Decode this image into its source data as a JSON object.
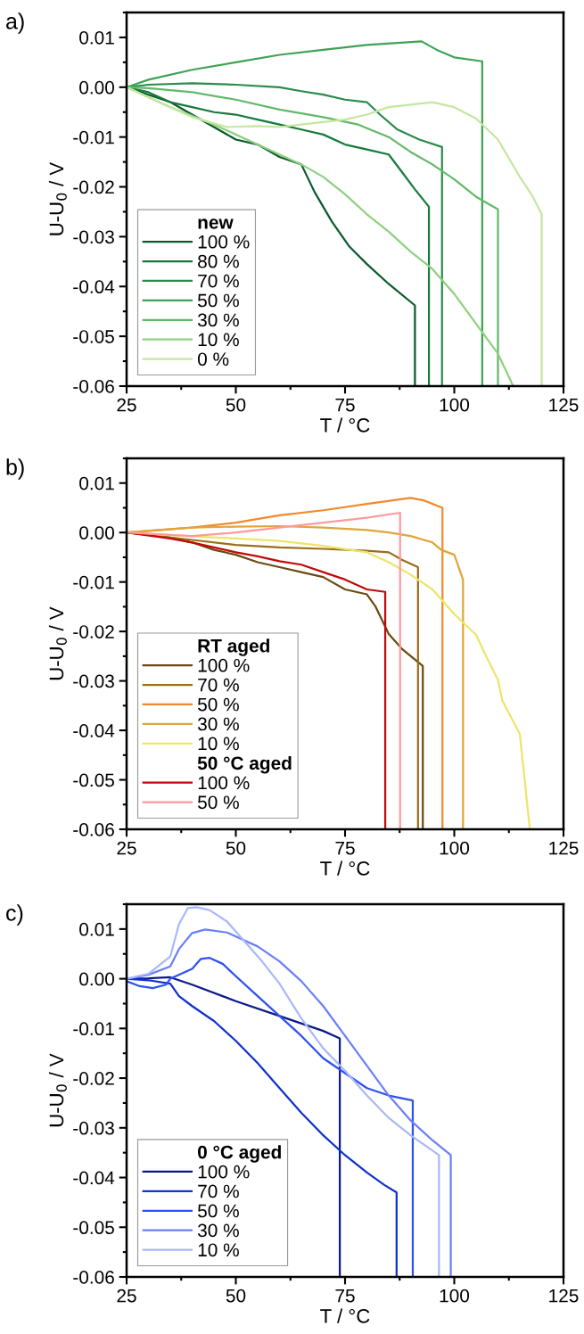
{
  "chart_data": [
    {
      "type": "line",
      "title": "a)",
      "xlabel": "T / °C",
      "ylabel": "U-U$_{0}$ / V",
      "legend_title": "new",
      "legend": "bottom left",
      "grid": false,
      "marker": "none",
      "line_style": "solid",
      "xlim": [
        25,
        125
      ],
      "xticks": [
        25,
        50,
        75,
        100,
        125
      ],
      "ylim": [
        -0.06,
        0.015
      ],
      "yticks": [
        {
          "value": 0.01,
          "label": "0.01"
        },
        {
          "value": 0,
          "label": "0.00"
        },
        {
          "value": -0.01,
          "label": "-0.01"
        },
        {
          "value": -0.02,
          "label": "-0.02"
        },
        {
          "value": -0.03,
          "label": "-0.03"
        },
        {
          "value": -0.04,
          "label": "-0.04"
        },
        {
          "value": -0.05,
          "label": "-0.05"
        },
        {
          "value": -0.06,
          "label": "-0.06"
        }
      ],
      "series": [
        {
          "name": "100 %",
          "color": "#0b5a2c",
          "x": [
            25,
            30,
            35,
            40,
            45,
            50,
            55,
            60,
            65,
            68,
            72,
            76,
            80,
            85,
            91,
            91
          ],
          "values": [
            0,
            -0.0015,
            -0.003,
            -0.0055,
            -0.008,
            -0.0105,
            -0.0115,
            -0.014,
            -0.0155,
            -0.021,
            -0.027,
            -0.032,
            -0.0355,
            -0.0395,
            -0.0438,
            -0.06
          ]
        },
        {
          "name": "80 %",
          "color": "#177a3c",
          "x": [
            25,
            30,
            35,
            40,
            45,
            50,
            55,
            60,
            65,
            70,
            75,
            80,
            85,
            88,
            91,
            94.2,
            94.2
          ],
          "values": [
            0,
            -0.001,
            -0.003,
            -0.004,
            -0.005,
            -0.0055,
            -0.0065,
            -0.0075,
            -0.0085,
            -0.0095,
            -0.0115,
            -0.0125,
            -0.0135,
            -0.017,
            -0.0205,
            -0.024,
            -0.06
          ]
        },
        {
          "name": "70 %",
          "color": "#2a8c4a",
          "x": [
            25,
            30,
            40,
            50,
            60,
            65,
            70,
            75,
            80,
            83,
            87,
            92,
            97.2,
            97.2
          ],
          "values": [
            0,
            0.0005,
            0.0008,
            0.0005,
            0,
            -0.0008,
            -0.0015,
            -0.0025,
            -0.003,
            -0.0055,
            -0.0085,
            -0.0105,
            -0.012,
            -0.06
          ]
        },
        {
          "name": "50 %",
          "color": "#3ea356",
          "x": [
            25,
            30,
            40,
            50,
            60,
            70,
            80,
            92.5,
            96,
            100,
            106.4,
            106.4
          ],
          "values": [
            0,
            0.0015,
            0.0035,
            0.005,
            0.0065,
            0.0075,
            0.0085,
            0.0092,
            0.0075,
            0.006,
            0.0052,
            -0.06
          ]
        },
        {
          "name": "30 %",
          "color": "#62b96a",
          "x": [
            25,
            30,
            40,
            50,
            60,
            70,
            78,
            85,
            90,
            95,
            100,
            105,
            110,
            110
          ],
          "values": [
            0,
            -0.0002,
            -0.001,
            -0.0025,
            -0.0045,
            -0.006,
            -0.0075,
            -0.01,
            -0.013,
            -0.0155,
            -0.0185,
            -0.022,
            -0.0245,
            -0.06
          ]
        },
        {
          "name": "10 %",
          "color": "#8fd081",
          "x": [
            25,
            35,
            45,
            50,
            55,
            60,
            65,
            70,
            75,
            80,
            85,
            90,
            95,
            100,
            105,
            110,
            113.5
          ],
          "values": [
            0,
            -0.004,
            -0.0075,
            -0.0095,
            -0.0115,
            -0.0135,
            -0.0155,
            -0.018,
            -0.0215,
            -0.0255,
            -0.029,
            -0.033,
            -0.0365,
            -0.0415,
            -0.0475,
            -0.0535,
            -0.06
          ]
        },
        {
          "name": "0 %",
          "color": "#c5e6a0",
          "x": [
            25,
            30,
            40,
            48,
            55,
            60,
            65,
            70,
            75,
            80,
            85,
            90,
            95,
            100,
            105,
            110,
            115,
            118,
            120,
            120
          ],
          "values": [
            0,
            -0.002,
            -0.006,
            -0.008,
            -0.0078,
            -0.008,
            -0.0075,
            -0.007,
            -0.0065,
            -0.0055,
            -0.004,
            -0.0035,
            -0.003,
            -0.004,
            -0.0063,
            -0.0105,
            -0.018,
            -0.022,
            -0.0255,
            -0.06
          ]
        }
      ]
    },
    {
      "type": "line",
      "title": "b)",
      "xlabel": "T / °C",
      "ylabel": "U-U$_{0}$ / V",
      "legend_title": "RT aged",
      "legend": "bottom left",
      "grid": false,
      "marker": "none",
      "line_style": "solid",
      "annotations": [
        "50 °C aged"
      ],
      "xlim": [
        25,
        125
      ],
      "xticks": [
        25,
        50,
        75,
        100,
        125
      ],
      "ylim": [
        -0.06,
        0.015
      ],
      "yticks": [
        {
          "value": 0.01,
          "label": "0.01"
        },
        {
          "value": 0,
          "label": "0.00"
        },
        {
          "value": -0.01,
          "label": "-0.01"
        },
        {
          "value": -0.02,
          "label": "-0.02"
        },
        {
          "value": -0.03,
          "label": "-0.03"
        },
        {
          "value": -0.04,
          "label": "-0.04"
        },
        {
          "value": -0.05,
          "label": "-0.05"
        },
        {
          "value": -0.06,
          "label": "-0.06"
        }
      ],
      "series": [
        {
          "name": "100 %",
          "color": "#6b4a12",
          "x": [
            25,
            35,
            40,
            45,
            50,
            55,
            60,
            65,
            70,
            75,
            80,
            82,
            85,
            88,
            92.8,
            92.8
          ],
          "values": [
            0,
            -0.001,
            -0.002,
            -0.0035,
            -0.0045,
            -0.006,
            -0.007,
            -0.008,
            -0.009,
            -0.0115,
            -0.0125,
            -0.015,
            -0.0205,
            -0.0235,
            -0.027,
            -0.06
          ]
        },
        {
          "name": "70 %",
          "color": "#9a6d1c",
          "x": [
            25,
            35,
            40,
            50,
            60,
            70,
            80,
            85,
            88,
            91.7,
            91.7
          ],
          "values": [
            0,
            -0.001,
            -0.0015,
            -0.0025,
            -0.003,
            -0.0033,
            -0.0037,
            -0.004,
            -0.0055,
            -0.007,
            -0.06
          ]
        },
        {
          "name": "50 %",
          "color": "#f08a2c",
          "x": [
            25,
            40,
            50,
            60,
            70,
            80,
            90,
            93,
            97.3,
            97.3
          ],
          "values": [
            0,
            0.001,
            0.002,
            0.0035,
            0.0045,
            0.0058,
            0.007,
            0.0065,
            0.005,
            -0.06
          ]
        },
        {
          "name": "30 %",
          "color": "#e0a53a",
          "x": [
            25,
            40,
            50,
            60,
            70,
            80,
            85,
            90,
            95,
            97,
            100,
            102,
            102
          ],
          "values": [
            0,
            0.001,
            0.0012,
            0.0013,
            0.001,
            0.0005,
            0,
            -0.0007,
            -0.002,
            -0.0035,
            -0.0045,
            -0.0095,
            -0.06
          ]
        },
        {
          "name": "10 %",
          "color": "#ece56a",
          "x": [
            25,
            40,
            50,
            60,
            70,
            80,
            85,
            90,
            95,
            100,
            105,
            107,
            110,
            111,
            115,
            117.3
          ],
          "values": [
            0,
            -0.0008,
            -0.0012,
            -0.0017,
            -0.0027,
            -0.004,
            -0.006,
            -0.0085,
            -0.0115,
            -0.0165,
            -0.0207,
            -0.0245,
            -0.0298,
            -0.034,
            -0.0407,
            -0.06
          ]
        },
        {
          "name": "100 %",
          "color": "#c00a0a",
          "x": [
            25,
            35,
            40,
            45,
            50,
            55,
            60,
            65,
            70,
            75,
            80,
            84.2,
            84.2
          ],
          "values": [
            0,
            -0.0012,
            -0.002,
            -0.003,
            -0.004,
            -0.0048,
            -0.0058,
            -0.0065,
            -0.008,
            -0.0095,
            -0.0115,
            -0.012,
            -0.06
          ]
        },
        {
          "name": "50 %",
          "color": "#ff9a9a",
          "x": [
            25,
            35,
            40,
            50,
            60,
            70,
            80,
            87.6,
            87.6
          ],
          "values": [
            0,
            -0.0005,
            -0.0007,
            0,
            0.001,
            0.002,
            0.003,
            0.004,
            -0.06
          ]
        }
      ]
    },
    {
      "type": "line",
      "title": "c)",
      "xlabel": "T / °C",
      "ylabel": "U-U$_{0}$ / V",
      "legend_title": "0 °C aged",
      "legend": "bottom left",
      "grid": false,
      "marker": "none",
      "line_style": "solid",
      "xlim": [
        25,
        125
      ],
      "xticks": [
        25,
        50,
        75,
        100,
        125
      ],
      "ylim": [
        -0.06,
        0.015
      ],
      "yticks": [
        {
          "value": 0.01,
          "label": "0.01"
        },
        {
          "value": 0,
          "label": "0.00"
        },
        {
          "value": -0.01,
          "label": "-0.01"
        },
        {
          "value": -0.02,
          "label": "-0.02"
        },
        {
          "value": -0.03,
          "label": "-0.03"
        },
        {
          "value": -0.04,
          "label": "-0.04"
        },
        {
          "value": -0.05,
          "label": "-0.05"
        },
        {
          "value": -0.06,
          "label": "-0.06"
        }
      ],
      "series": [
        {
          "name": "100 %",
          "color": "#0a1a8a",
          "x": [
            25,
            30,
            35,
            40,
            50,
            60,
            70,
            73.8,
            73.8
          ],
          "values": [
            0,
            0.0001,
            0.0003,
            -0.0012,
            -0.0045,
            -0.0075,
            -0.0105,
            -0.012,
            -0.06
          ]
        },
        {
          "name": "70 %",
          "color": "#1030d0",
          "x": [
            25,
            30,
            35,
            37,
            40,
            45,
            50,
            55,
            60,
            65,
            70,
            75,
            80,
            84,
            86.8,
            86.8
          ],
          "values": [
            0,
            -0.0003,
            -0.001,
            -0.0035,
            -0.0055,
            -0.0085,
            -0.0125,
            -0.017,
            -0.022,
            -0.027,
            -0.0315,
            -0.0355,
            -0.039,
            -0.0415,
            -0.043,
            -0.06
          ]
        },
        {
          "name": "50 %",
          "color": "#3050f0",
          "x": [
            25,
            28,
            31,
            34,
            35,
            40,
            42,
            44,
            47,
            50,
            55,
            60,
            65,
            70,
            75,
            80,
            85,
            90.5,
            90.5
          ],
          "values": [
            -0.0005,
            -0.0015,
            -0.0019,
            -0.0012,
            0,
            0.002,
            0.004,
            0.0042,
            0.003,
            0.0005,
            -0.0035,
            -0.0075,
            -0.0115,
            -0.016,
            -0.019,
            -0.022,
            -0.0235,
            -0.0245,
            -0.06
          ]
        },
        {
          "name": "30 %",
          "color": "#6a80f8",
          "x": [
            25,
            30,
            35,
            37,
            40,
            43,
            48,
            55,
            60,
            65,
            70,
            75,
            80,
            85,
            90,
            95,
            99.2,
            99.2
          ],
          "values": [
            0,
            0.0008,
            0.0025,
            0.006,
            0.0092,
            0.0099,
            0.0093,
            0.0065,
            0.0035,
            -0.0005,
            -0.0055,
            -0.0115,
            -0.0175,
            -0.0235,
            -0.0285,
            -0.0325,
            -0.0355,
            -0.06
          ]
        },
        {
          "name": "10 %",
          "color": "#a8b8fa",
          "x": [
            25,
            30,
            35,
            37,
            39,
            41,
            44,
            48,
            52,
            56,
            60,
            65,
            70,
            75,
            80,
            85,
            90,
            96.5,
            96.5
          ],
          "values": [
            0,
            0.001,
            0.0045,
            0.011,
            0.0142,
            0.0144,
            0.0138,
            0.0115,
            0.0075,
            0.0035,
            -0.001,
            -0.008,
            -0.014,
            -0.0185,
            -0.0235,
            -0.028,
            -0.0315,
            -0.0355,
            -0.06
          ]
        }
      ]
    }
  ]
}
